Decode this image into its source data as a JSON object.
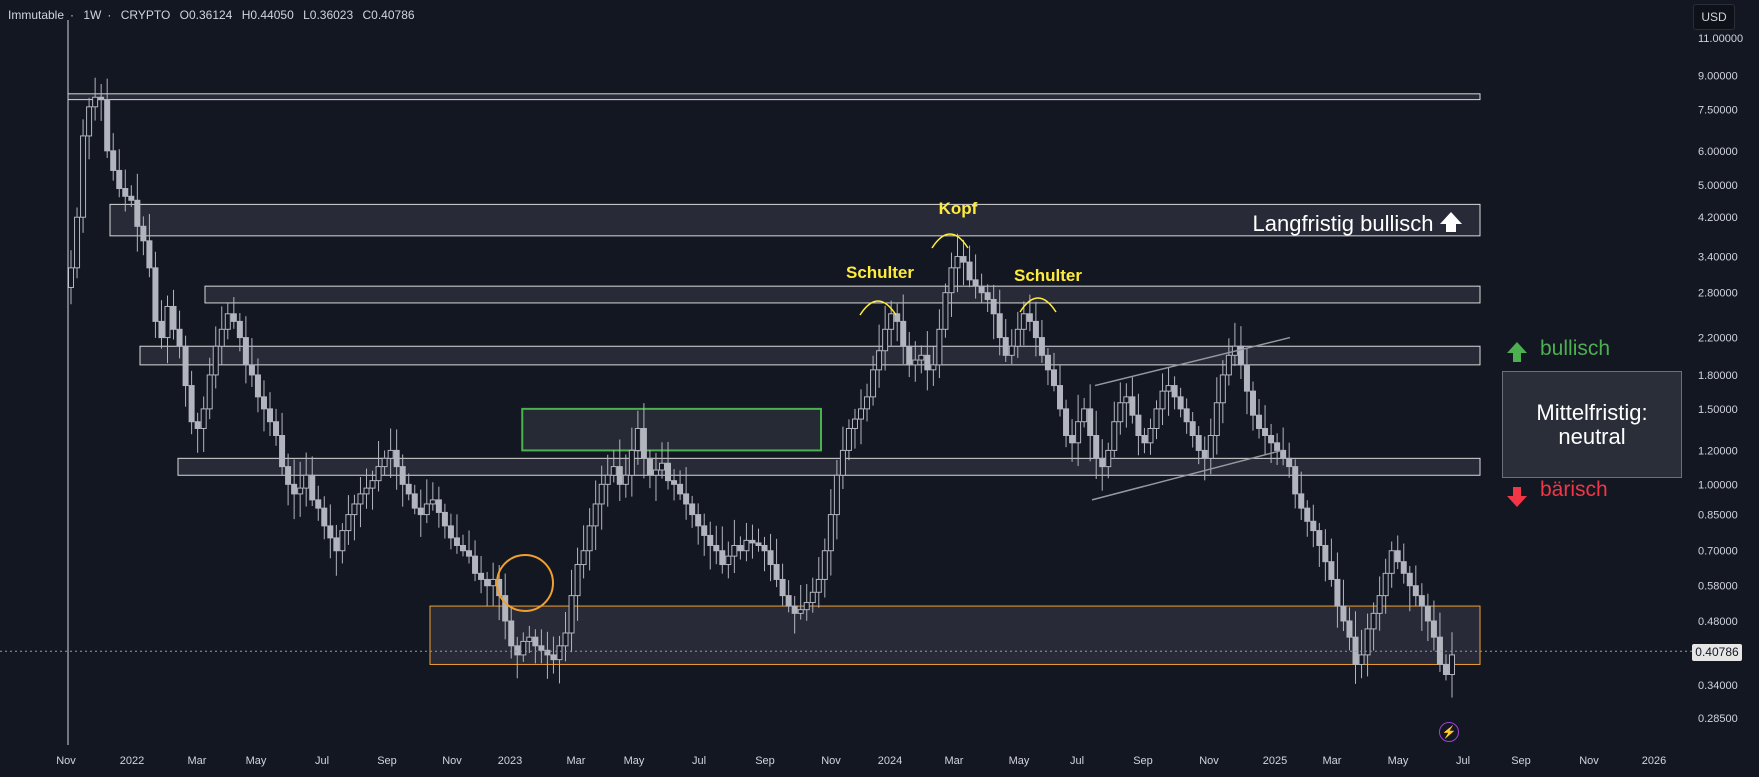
{
  "header": {
    "symbol": "Immutable",
    "interval": "1W",
    "exchange": "CRYPTO",
    "open": "O0.36124",
    "high": "H0.44050",
    "low": "L0.36023",
    "close": "C0.40786"
  },
  "currency_button": "USD",
  "last_price_label": "0.40786",
  "annotations": {
    "langfristig": "Langfristig bullisch",
    "kopf": "Kopf",
    "schulter_left": "Schulter",
    "schulter_right": "Schulter",
    "bullisch": "bullisch",
    "baerisch": "bärisch",
    "mittelfristig_line1": "Mittelfristig:",
    "mittelfristig_line2": "neutral"
  },
  "colors": {
    "background": "#131722",
    "candle": "#b2b5be",
    "zone_fill": "#3a3d48",
    "zone_border": "#d9d9d9",
    "green_zone": "#4caf50",
    "orange_zone": "#f0a030",
    "label_yellow": "#ffeb3b",
    "bullish": "#4caf50",
    "bearish": "#f23645"
  },
  "icons": {
    "up_arrow_white": "arrow-up-icon",
    "up_arrow_green": "arrow-up-icon",
    "down_arrow_red": "arrow-down-icon",
    "bolt": "lightning-icon"
  },
  "chart_data": {
    "type": "candlestick",
    "scale": "log",
    "y_ticks": [
      11,
      9,
      7.5,
      6,
      5,
      4.2,
      3.4,
      2.8,
      2.2,
      1.8,
      1.5,
      1.2,
      1.0,
      0.85,
      0.7,
      0.58,
      0.48,
      0.34,
      0.285
    ],
    "y_tick_labels": [
      "11.00000",
      "9.00000",
      "7.50000",
      "6.00000",
      "5.00000",
      "4.20000",
      "3.40000",
      "2.80000",
      "2.20000",
      "1.80000",
      "1.50000",
      "1.20000",
      "1.00000",
      "0.85000",
      "0.70000",
      "0.58000",
      "0.48000",
      "0.34000",
      "0.28500"
    ],
    "x_tick_labels": [
      "Nov",
      "2022",
      "Mar",
      "May",
      "Jul",
      "Sep",
      "Nov",
      "2023",
      "Mar",
      "May",
      "Jul",
      "Sep",
      "Nov",
      "2024",
      "Mar",
      "May",
      "Jul",
      "Sep",
      "Nov",
      "2025",
      "Mar",
      "May",
      "Jul",
      "Sep",
      "Nov",
      "2026"
    ],
    "last_price": 0.40786,
    "horizontal_zones": [
      {
        "low": 7.9,
        "high": 8.15,
        "kind": "resistance"
      },
      {
        "low": 3.8,
        "high": 4.5,
        "kind": "resistance"
      },
      {
        "low": 2.65,
        "high": 2.9,
        "kind": "resistance"
      },
      {
        "low": 1.9,
        "high": 2.1,
        "kind": "resistance"
      },
      {
        "low": 1.05,
        "high": 1.15,
        "kind": "support"
      },
      {
        "low": 0.38,
        "high": 0.52,
        "kind": "support"
      }
    ],
    "green_zone": {
      "start": "2023-02",
      "end": "2023-11",
      "low": 1.2,
      "high": 1.5
    },
    "channel": {
      "upper_from": 1.7,
      "upper_to": 2.2,
      "lower_from": 0.92,
      "lower_to": 1.2
    },
    "weekly_closes": [
      3.2,
      4.2,
      6.5,
      7.6,
      8.0,
      7.9,
      6.0,
      5.4,
      4.9,
      4.7,
      4.6,
      4.0,
      3.7,
      3.2,
      2.4,
      2.2,
      2.6,
      2.3,
      2.1,
      1.7,
      1.4,
      1.35,
      1.5,
      1.8,
      2.1,
      2.3,
      2.5,
      2.4,
      2.2,
      1.9,
      1.8,
      1.6,
      1.5,
      1.4,
      1.3,
      1.1,
      1.0,
      0.95,
      0.98,
      1.05,
      0.92,
      0.88,
      0.8,
      0.75,
      0.7,
      0.78,
      0.85,
      0.9,
      0.95,
      0.98,
      1.02,
      1.1,
      1.15,
      1.2,
      1.1,
      1.0,
      0.95,
      0.88,
      0.85,
      0.9,
      0.92,
      0.86,
      0.8,
      0.75,
      0.72,
      0.7,
      0.68,
      0.62,
      0.6,
      0.58,
      0.6,
      0.55,
      0.48,
      0.42,
      0.4,
      0.43,
      0.44,
      0.42,
      0.41,
      0.4,
      0.39,
      0.42,
      0.45,
      0.55,
      0.65,
      0.7,
      0.8,
      0.9,
      1.0,
      1.05,
      1.1,
      1.0,
      1.05,
      1.2,
      1.35,
      1.15,
      1.05,
      1.08,
      1.12,
      1.02,
      1.0,
      0.95,
      0.9,
      0.85,
      0.8,
      0.76,
      0.72,
      0.7,
      0.65,
      0.68,
      0.72,
      0.7,
      0.74,
      0.73,
      0.72,
      0.7,
      0.65,
      0.6,
      0.55,
      0.52,
      0.5,
      0.51,
      0.53,
      0.56,
      0.6,
      0.7,
      0.85,
      1.05,
      1.2,
      1.35,
      1.42,
      1.5,
      1.6,
      1.85,
      2.05,
      2.3,
      2.5,
      2.4,
      2.1,
      1.9,
      1.95,
      2.0,
      1.85,
      1.9,
      2.3,
      2.8,
      3.2,
      3.4,
      3.3,
      3.0,
      2.9,
      2.8,
      2.7,
      2.5,
      2.2,
      2.0,
      2.1,
      2.3,
      2.5,
      2.4,
      2.2,
      2.0,
      1.85,
      1.7,
      1.5,
      1.3,
      1.25,
      1.4,
      1.5,
      1.3,
      1.15,
      1.1,
      1.2,
      1.4,
      1.55,
      1.6,
      1.45,
      1.3,
      1.25,
      1.35,
      1.5,
      1.65,
      1.7,
      1.6,
      1.5,
      1.4,
      1.3,
      1.2,
      1.15,
      1.3,
      1.55,
      1.8,
      2.0,
      2.1,
      1.9,
      1.65,
      1.45,
      1.35,
      1.3,
      1.25,
      1.2,
      1.15,
      1.1,
      0.95,
      0.88,
      0.82,
      0.78,
      0.72,
      0.66,
      0.6,
      0.52,
      0.48,
      0.44,
      0.38,
      0.4,
      0.46,
      0.5,
      0.55,
      0.62,
      0.7,
      0.66,
      0.62,
      0.58,
      0.55,
      0.52,
      0.48,
      0.44,
      0.38,
      0.36,
      0.4
    ]
  }
}
